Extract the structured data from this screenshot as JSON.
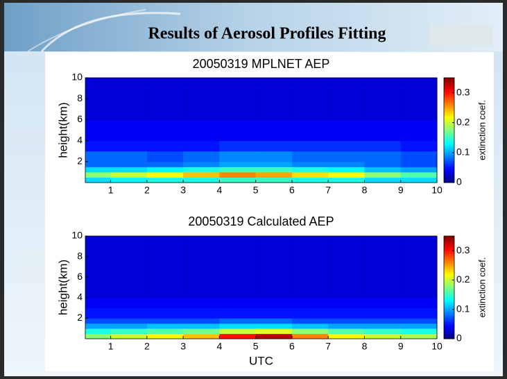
{
  "header": {
    "title": "Results of Aerosol Profiles Fitting"
  },
  "chart_data": [
    {
      "type": "heatmap",
      "title": "20050319 MPLNET AEP",
      "ylabel": "height(km)",
      "colormap": "jet",
      "xbins": [
        0.3,
        1,
        2,
        3,
        4,
        5,
        6,
        7,
        8,
        9,
        10
      ],
      "ybins": [
        0,
        0.5,
        1,
        1.5,
        2,
        3,
        4,
        6,
        10
      ],
      "values": [
        [
          0.12,
          0.13,
          0.14,
          0.14,
          0.15,
          0.15,
          0.14,
          0.14,
          0.12,
          0.12
        ],
        [
          0.18,
          0.2,
          0.22,
          0.24,
          0.26,
          0.25,
          0.23,
          0.22,
          0.18,
          0.16
        ],
        [
          0.12,
          0.12,
          0.13,
          0.14,
          0.15,
          0.15,
          0.14,
          0.13,
          0.11,
          0.1
        ],
        [
          0.08,
          0.08,
          0.08,
          0.09,
          0.1,
          0.1,
          0.09,
          0.09,
          0.08,
          0.07
        ],
        [
          0.08,
          0.08,
          0.07,
          0.08,
          0.09,
          0.09,
          0.08,
          0.08,
          0.08,
          0.07
        ],
        [
          0.05,
          0.05,
          0.05,
          0.05,
          0.06,
          0.06,
          0.06,
          0.06,
          0.06,
          0.05
        ],
        [
          0.04,
          0.04,
          0.04,
          0.04,
          0.04,
          0.04,
          0.04,
          0.04,
          0.04,
          0.04
        ],
        [
          0.03,
          0.03,
          0.03,
          0.03,
          0.03,
          0.03,
          0.03,
          0.03,
          0.03,
          0.03
        ]
      ],
      "xlim": [
        0.3,
        10
      ],
      "ylim": [
        0,
        10
      ],
      "xticks": [
        1,
        2,
        3,
        4,
        5,
        6,
        7,
        8,
        9,
        10
      ],
      "yticks": [
        2,
        4,
        6,
        8,
        10
      ],
      "clim": [
        0,
        0.35
      ],
      "cticks": [
        0,
        0.1,
        0.2,
        0.3
      ],
      "colorbar_label": "extinction coef."
    },
    {
      "type": "heatmap",
      "title": "20050319 Calculated AEP",
      "ylabel": "height(km)",
      "xlabel": "UTC",
      "colormap": "jet",
      "xbins": [
        0.3,
        1,
        2,
        3,
        4,
        5,
        6,
        7,
        8,
        9,
        10
      ],
      "ybins": [
        0,
        0.5,
        1,
        1.5,
        2,
        3,
        4,
        6,
        10
      ],
      "values": [
        [
          0.18,
          0.2,
          0.22,
          0.24,
          0.3,
          0.33,
          0.26,
          0.22,
          0.2,
          0.19
        ],
        [
          0.14,
          0.15,
          0.16,
          0.17,
          0.2,
          0.21,
          0.18,
          0.16,
          0.15,
          0.14
        ],
        [
          0.1,
          0.1,
          0.11,
          0.11,
          0.12,
          0.12,
          0.11,
          0.1,
          0.1,
          0.1
        ],
        [
          0.07,
          0.07,
          0.07,
          0.07,
          0.08,
          0.08,
          0.07,
          0.07,
          0.07,
          0.07
        ],
        [
          0.05,
          0.05,
          0.05,
          0.05,
          0.05,
          0.05,
          0.05,
          0.05,
          0.05,
          0.05
        ],
        [
          0.04,
          0.04,
          0.04,
          0.04,
          0.04,
          0.04,
          0.04,
          0.04,
          0.04,
          0.04
        ],
        [
          0.03,
          0.03,
          0.03,
          0.03,
          0.03,
          0.03,
          0.03,
          0.03,
          0.03,
          0.03
        ],
        [
          0.03,
          0.03,
          0.03,
          0.03,
          0.03,
          0.03,
          0.03,
          0.03,
          0.03,
          0.03
        ]
      ],
      "xlim": [
        0.3,
        10
      ],
      "ylim": [
        0,
        10
      ],
      "xticks": [
        1,
        2,
        3,
        4,
        5,
        6,
        7,
        8,
        9,
        10
      ],
      "yticks": [
        2,
        4,
        6,
        8,
        10
      ],
      "clim": [
        0,
        0.35
      ],
      "cticks": [
        0,
        0.1,
        0.2,
        0.3
      ],
      "colorbar_label": "extinction coef."
    }
  ]
}
